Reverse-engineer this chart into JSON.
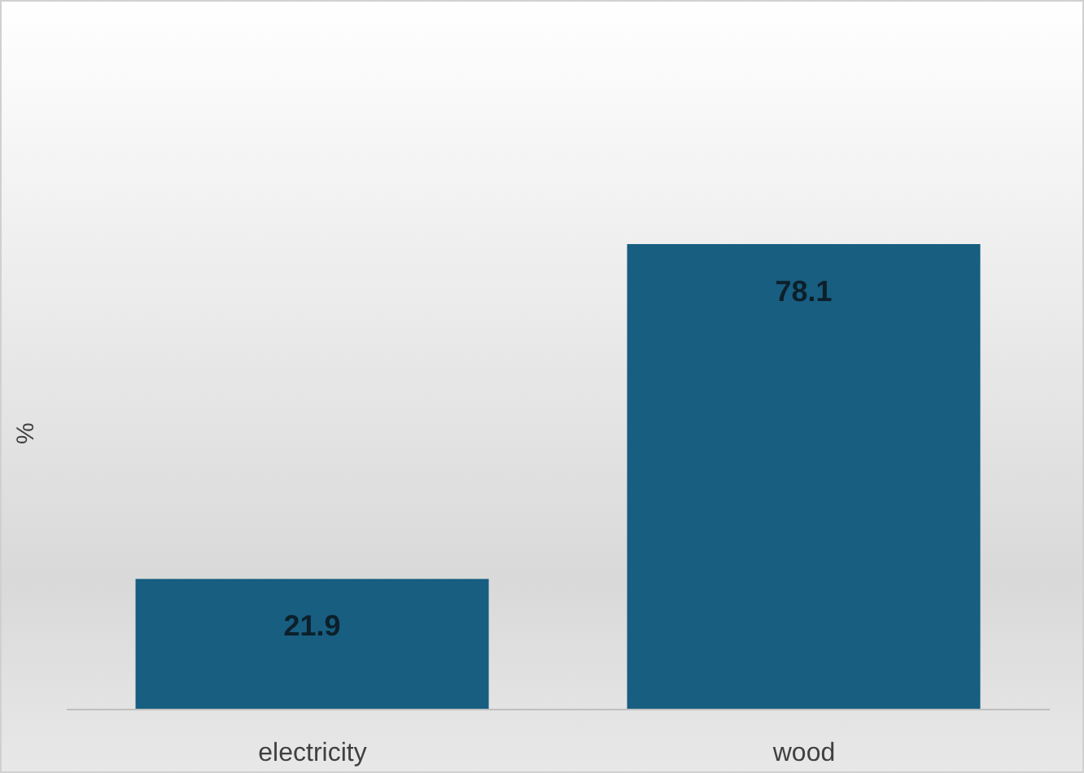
{
  "chart_data": {
    "type": "bar",
    "ylabel": "%",
    "categories": [
      "electricity",
      "wood"
    ],
    "values": [
      21.9,
      78.1
    ],
    "color": "#175e80",
    "data_labels": true
  }
}
